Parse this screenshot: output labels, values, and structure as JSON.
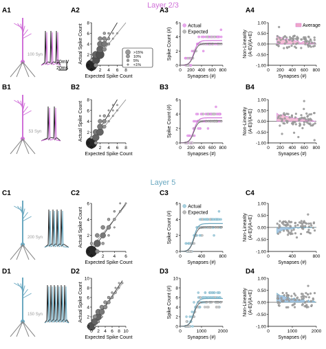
{
  "colors": {
    "l23": "#d070d8",
    "l23_light": "#e8a8ec",
    "l5": "#6aa8c0",
    "l5_light": "#a8d0de",
    "gray": "#888888",
    "dark": "#222222",
    "avg_fill_pink": "#f0a8c8",
    "avg_fill_blue": "#8ab4dc"
  },
  "sections": {
    "l23_title": "Layer 2/3",
    "l5_title": "Layer 5"
  },
  "panels": {
    "A1": "A1",
    "A2": "A2",
    "A3": "A3",
    "A4": "A4",
    "B1": "B1",
    "B2": "B2",
    "B3": "B3",
    "B4": "B4",
    "C1": "C1",
    "C2": "C2",
    "C3": "C3",
    "C4": "C4",
    "D1": "D1",
    "D2": "D2",
    "D3": "D3",
    "D4": "D4"
  },
  "morph_labels": {
    "A1": "100 Syn",
    "B1": "53 Syn",
    "C1": "200 Syn",
    "D1": "150 Syn"
  },
  "scalebar": {
    "mv": "20mV",
    "ms": "20ms"
  },
  "size_legend": {
    "items": [
      ">15%",
      "10%",
      "5%",
      "<1%"
    ]
  },
  "chart_data": [
    {
      "id": "A2",
      "type": "scatter",
      "xlabel": "Expected Spike Count",
      "ylabel": "Actual Spike Count",
      "xlim": [
        0,
        8
      ],
      "ylim": [
        0,
        8
      ],
      "xticks": [
        "0",
        "2",
        "4",
        "6",
        "8"
      ],
      "yticks": [
        "0",
        "2",
        "4",
        "6",
        "8"
      ],
      "points": [
        [
          0,
          0,
          16
        ],
        [
          1,
          1,
          12
        ],
        [
          1,
          2,
          10
        ],
        [
          2,
          2,
          12
        ],
        [
          2,
          3,
          10
        ],
        [
          2,
          4,
          8
        ],
        [
          2,
          5,
          6
        ],
        [
          3,
          4,
          8
        ],
        [
          3,
          5,
          6
        ],
        [
          3,
          6,
          4
        ],
        [
          4,
          4,
          4
        ],
        [
          4,
          5,
          4
        ],
        [
          4,
          6,
          3
        ],
        [
          5,
          5,
          2
        ],
        [
          1,
          0,
          6
        ],
        [
          0,
          1,
          4
        ],
        [
          3,
          3,
          6
        ],
        [
          5,
          6,
          2
        ],
        [
          6,
          6,
          2
        ]
      ],
      "lines": [
        [
          [
            0,
            0
          ],
          [
            6,
            8
          ]
        ],
        [
          [
            0,
            0
          ],
          [
            8,
            8
          ]
        ]
      ],
      "legend": true
    },
    {
      "id": "A3",
      "type": "scatter",
      "xlabel": "Synapses (#)",
      "ylabel": "Spike Count (#)",
      "xlim": [
        0,
        800
      ],
      "ylim": [
        0,
        6
      ],
      "xticks": [
        "0",
        "200",
        "400",
        "600",
        "800"
      ],
      "yticks": [
        "0",
        "2",
        "4",
        "6"
      ],
      "legend": [
        "Actual",
        "Expected"
      ],
      "curve": "sig_a"
    },
    {
      "id": "A4",
      "type": "scatter",
      "xlabel": "Synapses (#)",
      "ylabel": "Non-Linearity\n(A-E)/(A+E)",
      "xlim": [
        0,
        800
      ],
      "ylim": [
        -1,
        1
      ],
      "xticks": [
        "0",
        "200",
        "400",
        "600",
        "800"
      ],
      "yticks": [
        "-1.00",
        "-0.50",
        "0.00",
        "0.50",
        "1.00"
      ],
      "legend": [
        "Average"
      ]
    },
    {
      "id": "B2",
      "type": "scatter",
      "xlabel": "Expected Spike Count",
      "ylabel": "Actual Spike Count",
      "xlim": [
        0,
        8
      ],
      "ylim": [
        0,
        8
      ],
      "xticks": [
        "0",
        "2",
        "4",
        "6",
        "8"
      ],
      "yticks": [
        "0",
        "2",
        "4",
        "6",
        "8"
      ],
      "points": [
        [
          0,
          0,
          16
        ],
        [
          1,
          1,
          10
        ],
        [
          1,
          2,
          8
        ],
        [
          2,
          2,
          10
        ],
        [
          2,
          3,
          8
        ],
        [
          2,
          4,
          6
        ],
        [
          3,
          4,
          6
        ],
        [
          3,
          5,
          4
        ],
        [
          4,
          5,
          3
        ],
        [
          4,
          6,
          2
        ],
        [
          5,
          6,
          2
        ],
        [
          1,
          0,
          5
        ],
        [
          0,
          1,
          4
        ],
        [
          3,
          3,
          5
        ],
        [
          4,
          4,
          3
        ],
        [
          5,
          5,
          2
        ],
        [
          6,
          6,
          2
        ],
        [
          2,
          5,
          2
        ],
        [
          5,
          7,
          1
        ],
        [
          6,
          7,
          1
        ]
      ],
      "lines": [
        [
          [
            0,
            0
          ],
          [
            6,
            8
          ]
        ],
        [
          [
            0,
            0
          ],
          [
            8,
            8
          ]
        ]
      ]
    },
    {
      "id": "B3",
      "type": "scatter",
      "xlabel": "Synapses (#)",
      "ylabel": "Spike Count (#)",
      "xlim": [
        0,
        800
      ],
      "ylim": [
        0,
        6
      ],
      "xticks": [
        "0",
        "200",
        "400",
        "600",
        "800"
      ],
      "yticks": [
        "0",
        "2",
        "4",
        "6"
      ],
      "curve": "sig_a"
    },
    {
      "id": "B4",
      "type": "scatter",
      "xlabel": "Synapses (#)",
      "ylabel": "Non-Linearity\n(A-E)/(A+E)",
      "xlim": [
        0,
        800
      ],
      "ylim": [
        -1,
        1
      ],
      "xticks": [
        "0",
        "200",
        "400",
        "600",
        "800"
      ],
      "yticks": [
        "-1.00",
        "-0.50",
        "0.00",
        "0.50",
        "1.00"
      ]
    },
    {
      "id": "C2",
      "type": "scatter",
      "xlabel": "Expected Spike Count",
      "ylabel": "Actual Spike Count",
      "xlim": [
        0,
        6
      ],
      "ylim": [
        0,
        6
      ],
      "xticks": [
        "0",
        "2",
        "4",
        "6"
      ],
      "yticks": [
        "0",
        "2",
        "4",
        "6"
      ],
      "points": [
        [
          0,
          0,
          16
        ],
        [
          1,
          1,
          10
        ],
        [
          1,
          2,
          6
        ],
        [
          2,
          2,
          8
        ],
        [
          2,
          3,
          6
        ],
        [
          3,
          3,
          6
        ],
        [
          3,
          4,
          4
        ],
        [
          4,
          4,
          4
        ],
        [
          4,
          5,
          3
        ],
        [
          5,
          5,
          3
        ],
        [
          5,
          6,
          2
        ],
        [
          0,
          1,
          4
        ],
        [
          1,
          0,
          6
        ],
        [
          2,
          1,
          4
        ],
        [
          3,
          2,
          3
        ],
        [
          4,
          3,
          2
        ],
        [
          6,
          6,
          2
        ]
      ],
      "lines": [
        [
          [
            0,
            0
          ],
          [
            6,
            6
          ]
        ],
        [
          [
            0,
            0.5
          ],
          [
            6,
            5.8
          ]
        ]
      ]
    },
    {
      "id": "C3",
      "type": "scatter",
      "xlabel": "Synapses (#)",
      "ylabel": "Spike Count (#)",
      "xlim": [
        0,
        1000
      ],
      "ylim": [
        0,
        6
      ],
      "xticks": [
        "0",
        "400",
        "800"
      ],
      "yticks": [
        "0",
        "2",
        "4",
        "6"
      ],
      "legend": [
        "Actual",
        "Expected"
      ],
      "curve": "sig_c"
    },
    {
      "id": "C4",
      "type": "scatter",
      "xlabel": "Synapses (#)",
      "ylabel": "Non-Linearity\n(A-E)/(A+E)",
      "xlim": [
        0,
        1000
      ],
      "ylim": [
        -1,
        1
      ],
      "xticks": [
        "0",
        "400",
        "800"
      ],
      "yticks": [
        "-1.00",
        "-0.50",
        "0.00",
        "0.50",
        "1.00"
      ]
    },
    {
      "id": "D2",
      "type": "scatter",
      "xlabel": "Expected Spike Count",
      "ylabel": "Actual Spike Count",
      "xlim": [
        0,
        10
      ],
      "ylim": [
        0,
        10
      ],
      "xticks": [
        "0",
        "2",
        "4",
        "6",
        "8",
        "10"
      ],
      "yticks": [
        "0",
        "2",
        "4",
        "6",
        "8",
        "10"
      ],
      "points": [
        [
          0,
          0,
          12
        ],
        [
          1,
          1,
          10
        ],
        [
          2,
          2,
          10
        ],
        [
          2,
          3,
          8
        ],
        [
          3,
          3,
          8
        ],
        [
          3,
          4,
          6
        ],
        [
          4,
          4,
          6
        ],
        [
          4,
          5,
          5
        ],
        [
          5,
          5,
          5
        ],
        [
          5,
          6,
          4
        ],
        [
          6,
          6,
          4
        ],
        [
          6,
          7,
          3
        ],
        [
          7,
          7,
          3
        ],
        [
          7,
          8,
          2
        ],
        [
          8,
          8,
          2
        ],
        [
          1,
          2,
          6
        ],
        [
          2,
          1,
          4
        ],
        [
          8,
          9,
          1
        ],
        [
          9,
          9,
          1
        ],
        [
          3,
          2,
          3
        ],
        [
          1,
          0,
          3
        ]
      ],
      "lines": [
        [
          [
            0,
            0
          ],
          [
            9,
            9.5
          ]
        ],
        [
          [
            0,
            0
          ],
          [
            9,
            9
          ]
        ]
      ]
    },
    {
      "id": "D3",
      "type": "scatter",
      "xlabel": "Synapses (#)",
      "ylabel": "Spike Count (#)",
      "xlim": [
        0,
        2000
      ],
      "ylim": [
        0,
        10
      ],
      "xticks": [
        "0",
        "1000",
        "2000"
      ],
      "yticks": [
        "0",
        "2",
        "4",
        "6",
        "8",
        "10"
      ],
      "curve": "sig_d"
    },
    {
      "id": "D4",
      "type": "scatter",
      "xlabel": "Synapses (#)",
      "ylabel": "Non-Linearity\n(A-E)/(A+E)",
      "xlim": [
        0,
        2000
      ],
      "ylim": [
        -1,
        1
      ],
      "xticks": [
        "0",
        "1000",
        "2000"
      ],
      "yticks": [
        "-1.00",
        "-0.50",
        "0.00",
        "0.50",
        "1.00"
      ]
    }
  ]
}
